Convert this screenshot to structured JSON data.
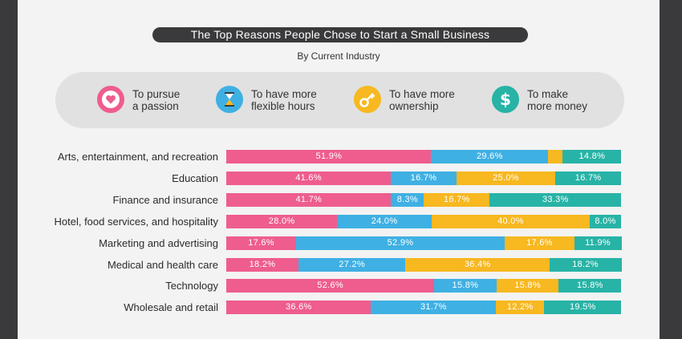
{
  "title": "The Top Reasons People Chose to Start a Small Business",
  "subtitle": "By Current Industry",
  "legend": [
    {
      "line1": "To pursue",
      "line2": "a passion",
      "icon": "heart-icon",
      "color": "#ee5d8d"
    },
    {
      "line1": "To have more",
      "line2": "flexible hours",
      "icon": "hourglass-icon",
      "color": "#3fb0e3"
    },
    {
      "line1": "To have more",
      "line2": "ownership",
      "icon": "key-icon",
      "color": "#f7b820"
    },
    {
      "line1": "To make",
      "line2": "more money",
      "icon": "dollar-icon",
      "color": "#27b3a6"
    }
  ],
  "chart_data": {
    "type": "bar",
    "orientation": "horizontal",
    "stacked": true,
    "normalized": true,
    "title": "The Top Reasons People Chose to Start a Small Business",
    "subtitle": "By Current Industry",
    "categories": [
      "Arts, entertainment, and recreation",
      "Education",
      "Finance and insurance",
      "Hotel, food services, and hospitality",
      "Marketing and advertising",
      "Medical and health care",
      "Technology",
      "Wholesale and retail"
    ],
    "series": [
      {
        "name": "To pursue a passion",
        "color": "#ee5d8d",
        "values": [
          51.9,
          41.6,
          41.7,
          28.0,
          17.6,
          18.2,
          52.6,
          36.6
        ],
        "labels": [
          "51.9%",
          "41.6%",
          "41.7%",
          "28.0%",
          "17.6%",
          "18.2%",
          "52.6%",
          "36.6%"
        ]
      },
      {
        "name": "To have more flexible hours",
        "color": "#3fb0e3",
        "values": [
          29.6,
          16.7,
          8.3,
          24.0,
          52.9,
          27.2,
          15.8,
          31.7
        ],
        "labels": [
          "29.6%",
          "16.7%",
          "8.3%",
          "24.0%",
          "52.9%",
          "27.2%",
          "15.8%",
          "31.7%"
        ]
      },
      {
        "name": "To have more ownership",
        "color": "#f7b820",
        "values": [
          3.7,
          25.0,
          16.7,
          40.0,
          17.6,
          36.4,
          15.8,
          12.2
        ],
        "labels": [
          "",
          "25.0%",
          "16.7%",
          "40.0%",
          "17.6%",
          "36.4%",
          "15.8%",
          "12.2%"
        ]
      },
      {
        "name": "To make more money",
        "color": "#27b3a6",
        "values": [
          14.8,
          16.7,
          33.3,
          8.0,
          11.9,
          18.2,
          15.8,
          19.5
        ],
        "labels": [
          "14.8%",
          "16.7%",
          "33.3%",
          "8.0%",
          "11.9%",
          "18.2%",
          "15.8%",
          "19.5%"
        ]
      }
    ],
    "xlim": [
      0,
      100
    ],
    "grid": false,
    "legend_position": "top"
  }
}
